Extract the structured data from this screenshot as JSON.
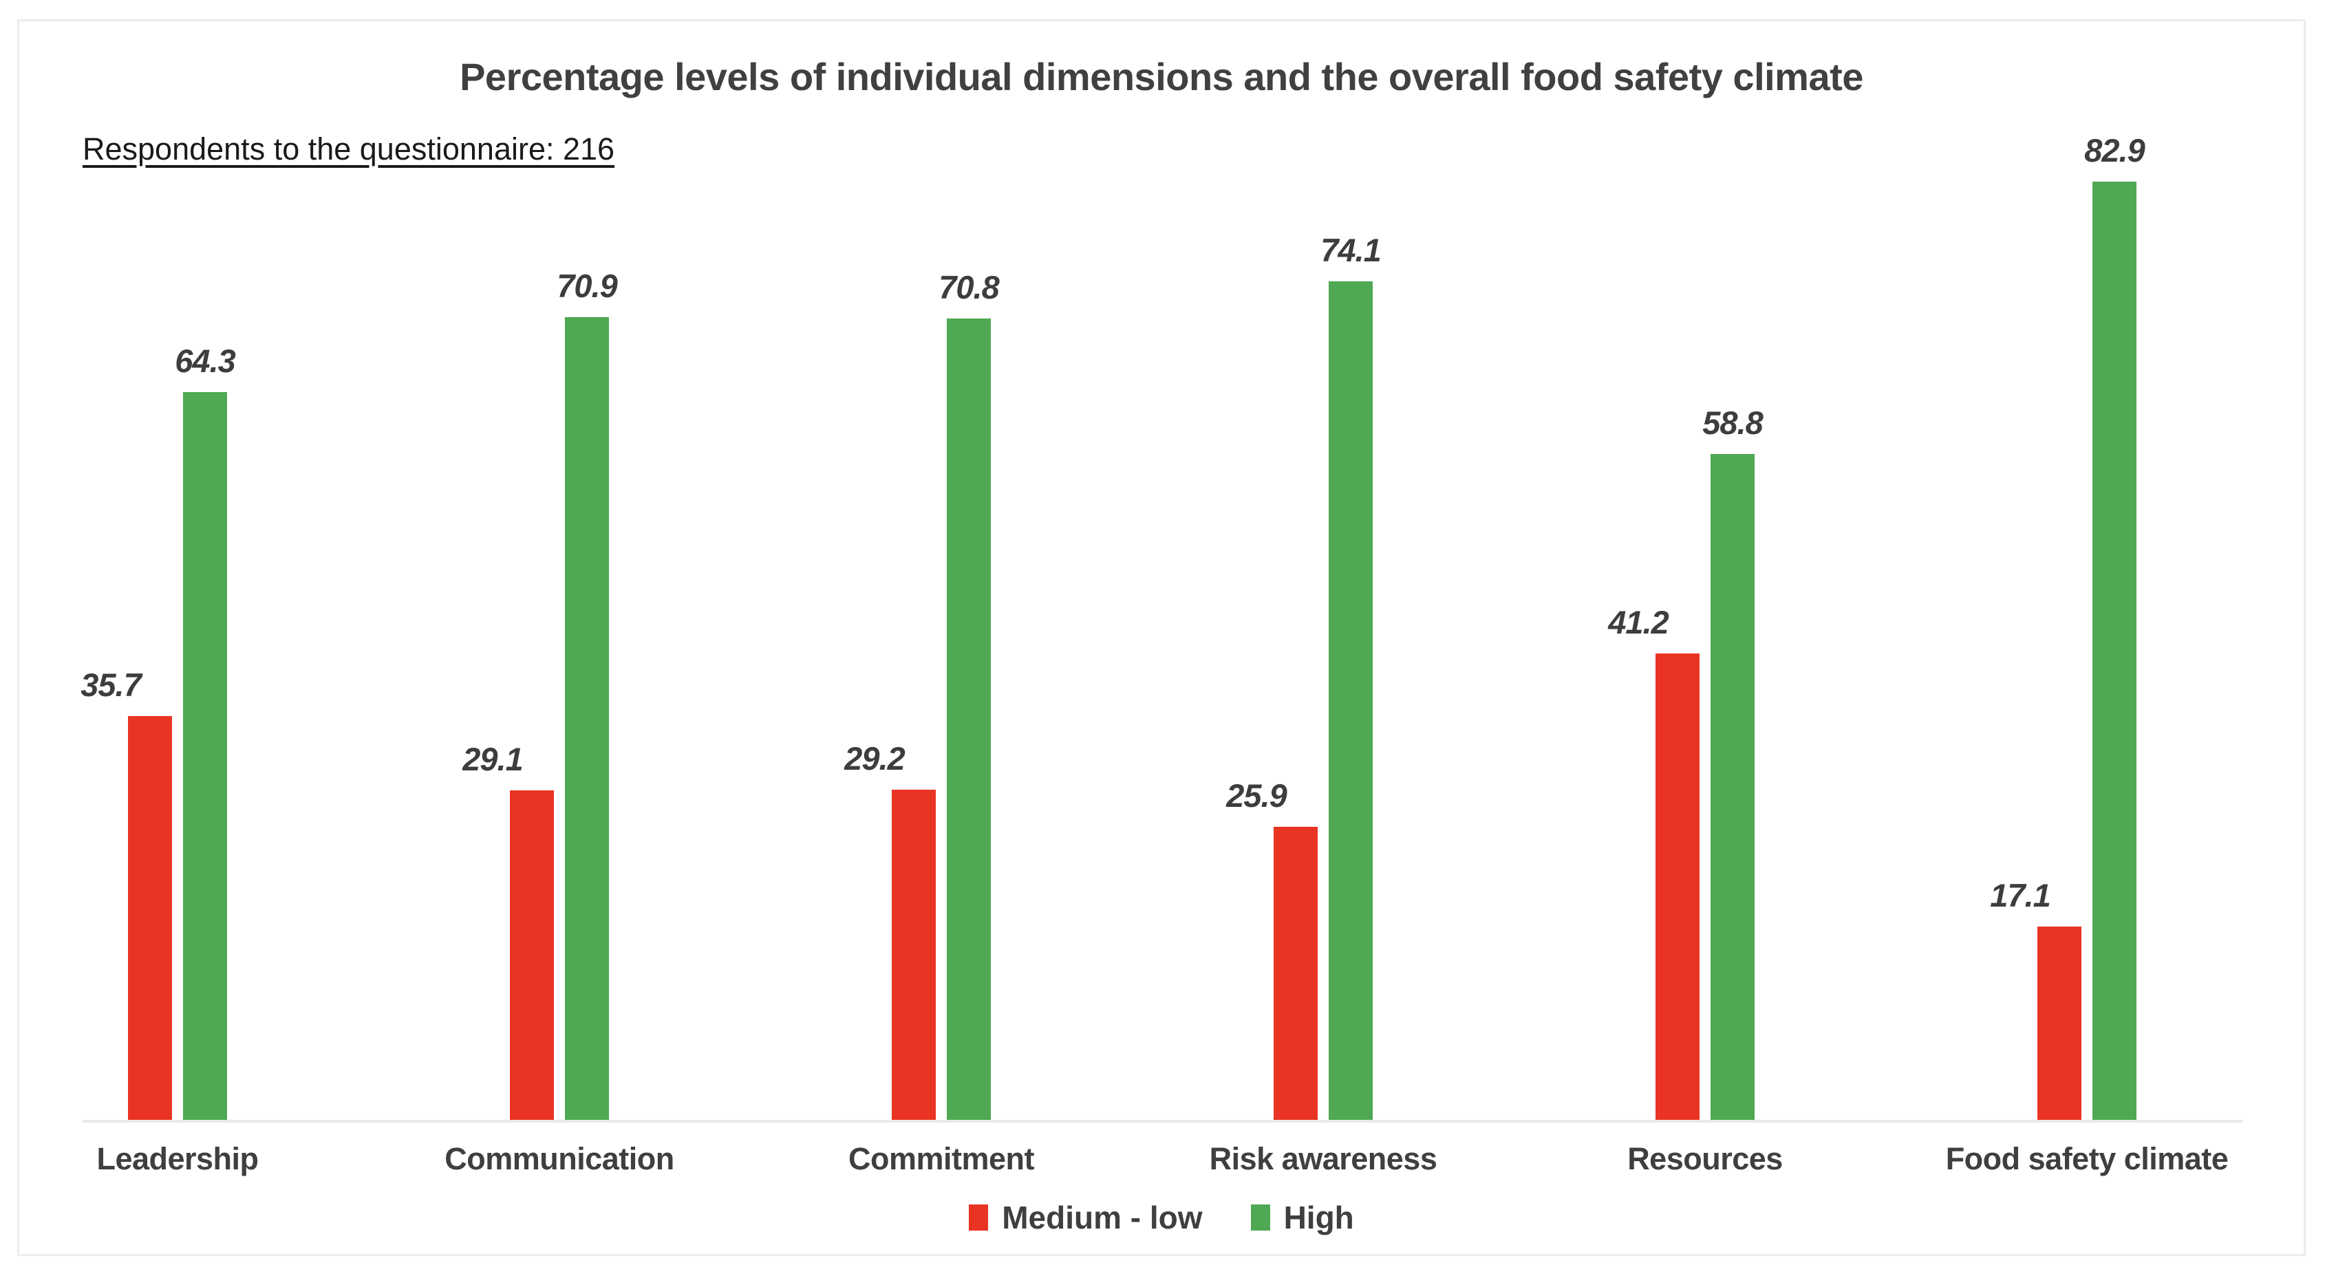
{
  "chart": {
    "title": "Percentage levels of individual dimensions and the overall food safety climate",
    "subtitle": "Respondents to the questionnaire: 216"
  },
  "chart_data": {
    "type": "bar",
    "title": "Percentage levels of individual dimensions and the overall food safety climate",
    "annotation": "Respondents to the questionnaire: 216",
    "respondents": 216,
    "categories": [
      "Leadership",
      "Communication",
      "Commitment",
      "Risk awareness",
      "Resources",
      "Food safety climate"
    ],
    "series": [
      {
        "name": "Medium - low",
        "color": "#E93323",
        "values": [
          35.7,
          29.1,
          29.2,
          25.9,
          41.2,
          17.1
        ]
      },
      {
        "name": "High",
        "color": "#4FA853",
        "values": [
          64.3,
          70.9,
          70.8,
          74.1,
          58.8,
          82.9
        ]
      }
    ],
    "xlabel": "",
    "ylabel": "",
    "ylim": [
      0,
      90
    ],
    "grid": false,
    "y_axis_visible": false,
    "legend_position": "bottom",
    "data_labels": "outside-end bold italic"
  },
  "colors": {
    "medium_low": "#E93323",
    "high": "#4FA853",
    "axis_line": "#E9E9E9",
    "canvas_border": "#ECECEC",
    "text": "#3f3f3f",
    "title_text": "#404040"
  }
}
